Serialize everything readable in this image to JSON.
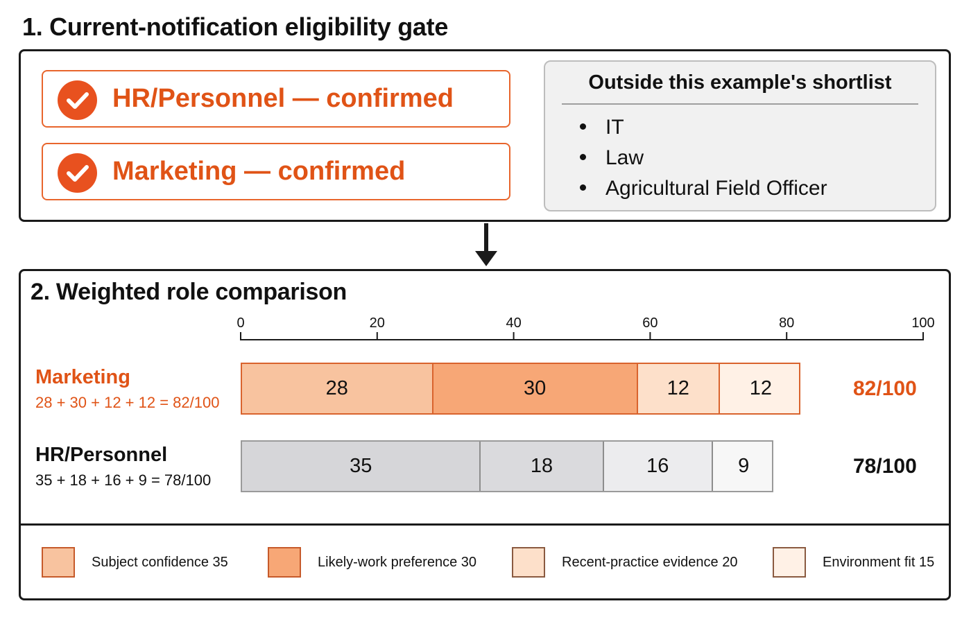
{
  "gate": {
    "title": "1. Current-notification eligibility gate",
    "confirmed": [
      {
        "label": "HR/Personnel — confirmed"
      },
      {
        "label": "Marketing — confirmed"
      }
    ],
    "outside": {
      "title": "Outside this example's shortlist",
      "items": [
        "IT",
        "Law",
        "Agricultural Field Officer"
      ]
    }
  },
  "comparison": {
    "title": "2. Weighted role comparison"
  },
  "chart_data": {
    "type": "bar",
    "orientation": "horizontal",
    "stacked": true,
    "xlim": [
      0,
      100
    ],
    "ticks": [
      0,
      20,
      40,
      60,
      80,
      100
    ],
    "components": [
      {
        "name": "Subject confidence 35",
        "color": "#f8c39f"
      },
      {
        "name": "Likely-work preference 30",
        "color": "#f7a776"
      },
      {
        "name": "Recent-practice evidence 20",
        "color": "#fde0ca"
      },
      {
        "name": "Environment fit 15",
        "color": "#fff1e6"
      }
    ],
    "rows": [
      {
        "name": "Marketing",
        "formula": "28 + 30 + 12 + 12 = 82/100",
        "values": [
          28,
          30,
          12,
          12
        ],
        "total_label": "82/100",
        "colors": [
          "#f8c39f",
          "#f7a776",
          "#fde0ca",
          "#fff1e6"
        ],
        "accent": "#e05316"
      },
      {
        "name": "HR/Personnel",
        "formula": "35 + 18 + 16 + 9 = 78/100",
        "values": [
          35,
          18,
          16,
          9
        ],
        "total_label": "78/100",
        "colors": [
          "#d6d6d9",
          "#dadadd",
          "#ececee",
          "#f7f7f7"
        ],
        "accent": "#111111"
      }
    ]
  }
}
